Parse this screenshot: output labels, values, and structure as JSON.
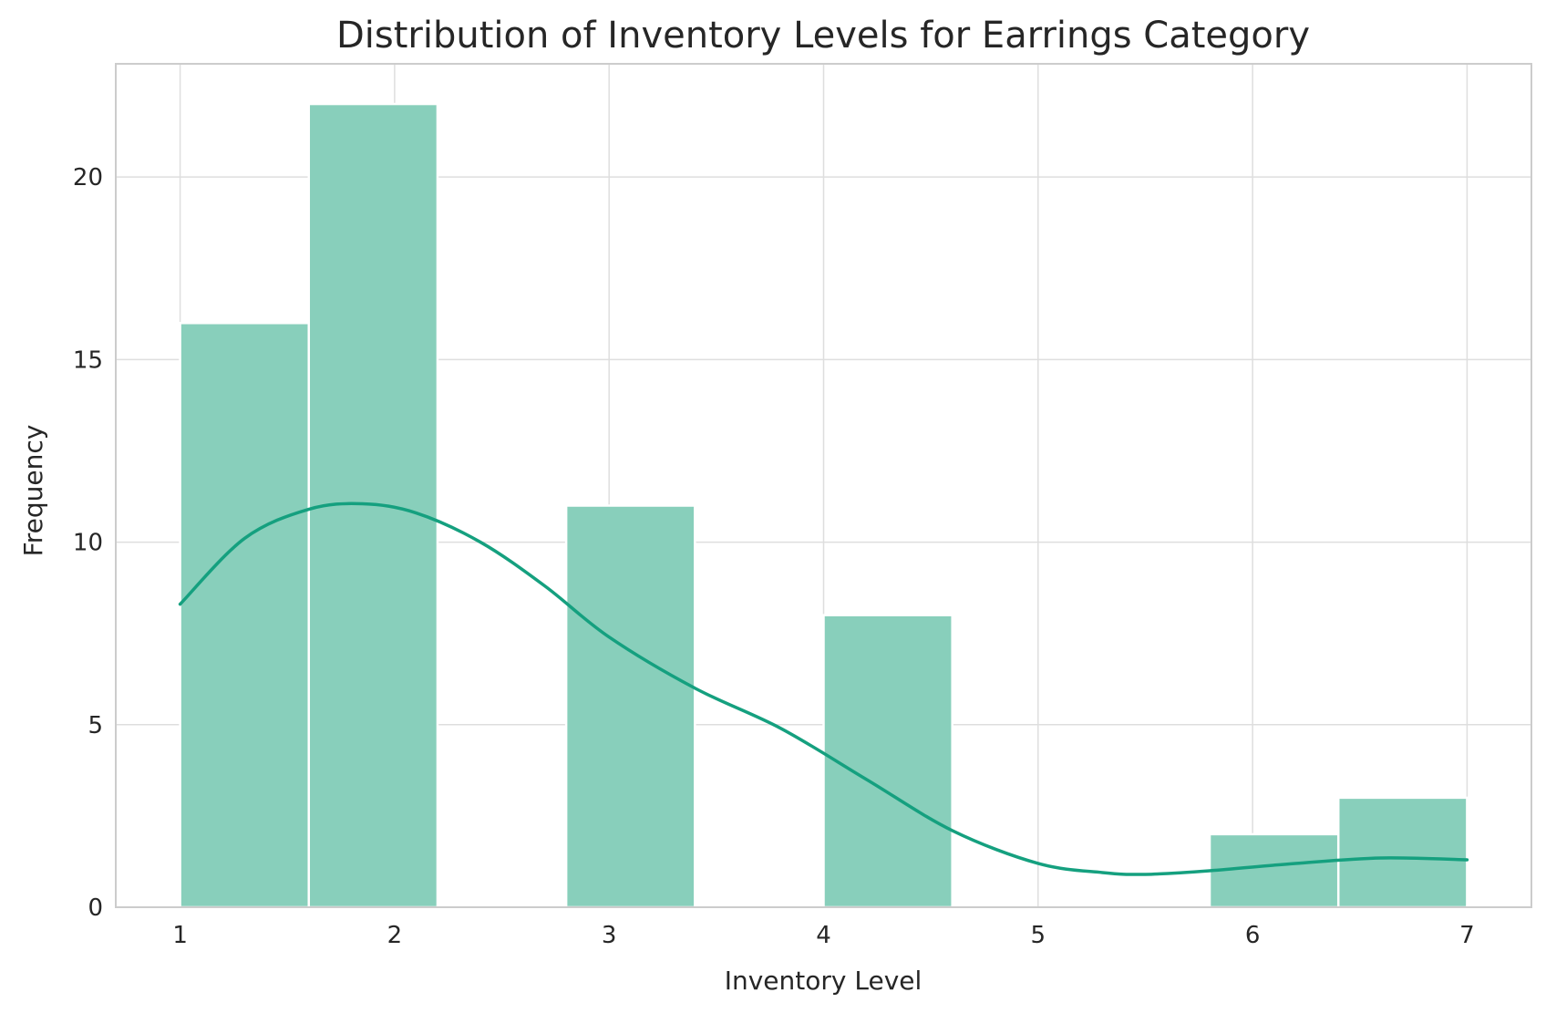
{
  "colors": {
    "bar_fill": "#88cfbb",
    "kde_line": "#15a07f",
    "grid": "#dedede",
    "frame": "#cccccc",
    "text": "#262626"
  },
  "chart_data": {
    "type": "bar",
    "title": "Distribution of Inventory Levels for Earrings Category",
    "xlabel": "Inventory Level",
    "ylabel": "Frequency",
    "xlim": [
      0.7,
      7.3
    ],
    "ylim": [
      0,
      23.1
    ],
    "xticks": [
      1,
      2,
      3,
      4,
      5,
      6,
      7
    ],
    "yticks": [
      0,
      5,
      10,
      15,
      20
    ],
    "grid": true,
    "bins": [
      {
        "start": 1.0,
        "end": 1.6,
        "count": 16
      },
      {
        "start": 1.6,
        "end": 2.2,
        "count": 22
      },
      {
        "start": 2.2,
        "end": 2.8,
        "count": 0
      },
      {
        "start": 2.8,
        "end": 3.4,
        "count": 11
      },
      {
        "start": 3.4,
        "end": 4.0,
        "count": 0
      },
      {
        "start": 4.0,
        "end": 4.6,
        "count": 8
      },
      {
        "start": 4.6,
        "end": 5.2,
        "count": 0
      },
      {
        "start": 5.2,
        "end": 5.8,
        "count": 0
      },
      {
        "start": 5.8,
        "end": 6.4,
        "count": 2
      },
      {
        "start": 6.4,
        "end": 7.0,
        "count": 3
      }
    ],
    "kde": {
      "x": [
        1.0,
        1.3,
        1.6,
        1.85,
        2.1,
        2.4,
        2.7,
        3.0,
        3.4,
        3.8,
        4.2,
        4.6,
        5.0,
        5.3,
        5.5,
        5.8,
        6.2,
        6.6,
        7.0
      ],
      "y": [
        8.3,
        10.1,
        10.9,
        11.05,
        10.8,
        10.0,
        8.8,
        7.4,
        6.0,
        4.9,
        3.5,
        2.1,
        1.2,
        0.95,
        0.9,
        1.0,
        1.2,
        1.35,
        1.3
      ]
    }
  }
}
